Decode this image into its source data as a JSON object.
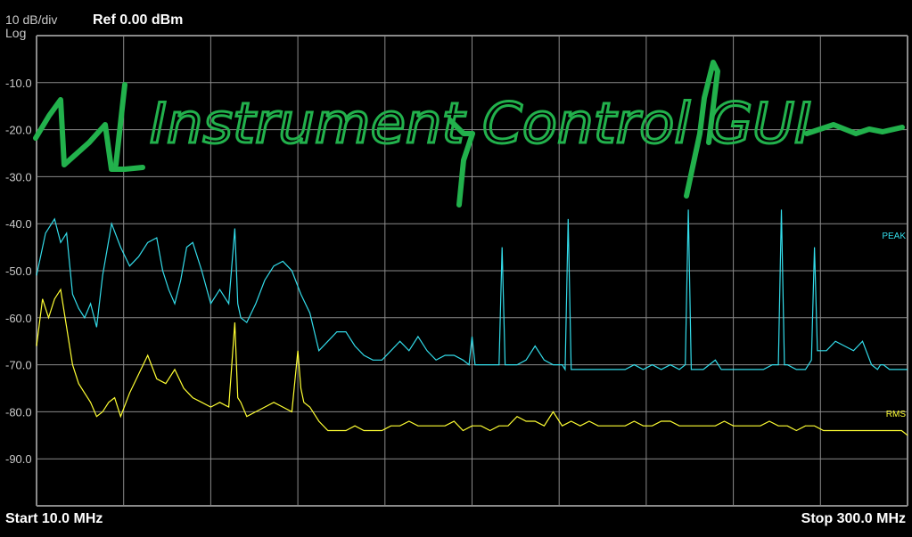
{
  "header": {
    "scale": "10 dB/div",
    "scale_type": "Log",
    "reference": "Ref 0.00 dBm"
  },
  "footer": {
    "start": "Start 10.0 MHz",
    "stop": "Stop 300.0 MHz"
  },
  "overlay_text": "Instrument Control GUI",
  "colors": {
    "background": "#000000",
    "grid": "#8a8a8a",
    "peak_trace": "#33dcea",
    "rms_trace": "#ffff33",
    "overlay": "#22b14c"
  },
  "chart_data": {
    "type": "line",
    "x_unit": "MHz",
    "y_unit": "dBm",
    "xlim": [
      10,
      300
    ],
    "ylim": [
      -100,
      0
    ],
    "y_ticks": [
      "-10.0",
      "-20.0",
      "-30.0",
      "-40.0",
      "-50.0",
      "-60.0",
      "-70.0",
      "-80.0",
      "-90.0"
    ],
    "grid": true,
    "series": [
      {
        "name": "PEAK",
        "color": "#33dcea",
        "x": [
          10,
          13,
          16,
          18,
          20,
          22,
          24,
          26,
          28,
          30,
          32,
          35,
          38,
          41,
          44,
          47,
          50,
          52,
          54,
          56,
          58,
          60,
          62,
          65,
          68,
          71,
          74,
          76,
          77,
          78,
          80,
          83,
          86,
          89,
          92,
          95,
          98,
          101,
          104,
          107,
          110,
          113,
          116,
          119,
          122,
          125,
          128,
          131,
          134,
          137,
          140,
          143,
          146,
          149,
          152,
          154,
          155,
          156,
          158,
          161,
          164,
          165,
          166,
          167,
          170,
          173,
          176,
          179,
          182,
          185,
          186,
          187,
          188,
          191,
          194,
          197,
          200,
          203,
          206,
          209,
          212,
          215,
          218,
          221,
          224,
          226,
          227,
          228,
          230,
          232,
          234,
          236,
          238,
          240,
          243,
          246,
          249,
          252,
          255,
          257,
          258,
          259,
          260,
          263,
          266,
          268,
          269,
          270,
          273,
          276,
          279,
          282,
          285,
          288,
          290,
          291,
          292,
          294,
          296,
          298,
          300
        ],
        "values": [
          -51,
          -42,
          -39,
          -44,
          -42,
          -55,
          -58,
          -60,
          -57,
          -62,
          -51,
          -40,
          -45,
          -49,
          -47,
          -44,
          -43,
          -50,
          -54,
          -57,
          -52,
          -45,
          -44,
          -50,
          -57,
          -54,
          -57,
          -41,
          -57,
          -60,
          -61,
          -57,
          -52,
          -49,
          -48,
          -50,
          -55,
          -59,
          -67,
          -65,
          -63,
          -63,
          -66,
          -68,
          -69,
          -69,
          -67,
          -65,
          -67,
          -64,
          -67,
          -69,
          -68,
          -68,
          -69,
          -70,
          -64,
          -70,
          -70,
          -70,
          -70,
          -45,
          -70,
          -70,
          -70,
          -69,
          -66,
          -69,
          -70,
          -70,
          -71,
          -39,
          -71,
          -71,
          -71,
          -71,
          -71,
          -71,
          -71,
          -70,
          -71,
          -70,
          -71,
          -70,
          -71,
          -70,
          -37,
          -71,
          -71,
          -71,
          -70,
          -69,
          -71,
          -71,
          -71,
          -71,
          -71,
          -71,
          -70,
          -70,
          -37,
          -70,
          -70,
          -71,
          -71,
          -69,
          -45,
          -67,
          -67,
          -65,
          -66,
          -67,
          -65,
          -70,
          -71,
          -70,
          -70,
          -71,
          -71,
          -71,
          -71
        ]
      },
      {
        "name": "RMS",
        "color": "#ffff33",
        "x": [
          10,
          12,
          14,
          16,
          18,
          20,
          22,
          24,
          26,
          28,
          30,
          32,
          34,
          36,
          38,
          41,
          44,
          47,
          50,
          53,
          56,
          59,
          62,
          65,
          68,
          71,
          74,
          76,
          77,
          78,
          80,
          83,
          86,
          89,
          92,
          95,
          97,
          98,
          99,
          101,
          104,
          107,
          110,
          113,
          116,
          119,
          122,
          125,
          128,
          131,
          134,
          137,
          140,
          143,
          146,
          149,
          152,
          155,
          158,
          161,
          164,
          167,
          170,
          173,
          176,
          179,
          182,
          185,
          188,
          191,
          194,
          197,
          200,
          203,
          206,
          209,
          212,
          215,
          218,
          221,
          224,
          227,
          230,
          233,
          236,
          239,
          242,
          245,
          248,
          251,
          254,
          257,
          260,
          263,
          266,
          269,
          272,
          275,
          278,
          281,
          284,
          287,
          290,
          293,
          296,
          298,
          300
        ],
        "values": [
          -66,
          -56,
          -60,
          -56,
          -54,
          -62,
          -70,
          -74,
          -76,
          -78,
          -81,
          -80,
          -78,
          -77,
          -81,
          -76,
          -72,
          -68,
          -73,
          -74,
          -71,
          -75,
          -77,
          -78,
          -79,
          -78,
          -79,
          -61,
          -77,
          -78,
          -81,
          -80,
          -79,
          -78,
          -79,
          -80,
          -67,
          -75,
          -78,
          -79,
          -82,
          -84,
          -84,
          -84,
          -83,
          -84,
          -84,
          -84,
          -83,
          -83,
          -82,
          -83,
          -83,
          -83,
          -83,
          -82,
          -84,
          -83,
          -83,
          -84,
          -83,
          -83,
          -81,
          -82,
          -82,
          -83,
          -80,
          -83,
          -82,
          -83,
          -82,
          -83,
          -83,
          -83,
          -83,
          -82,
          -83,
          -83,
          -82,
          -82,
          -83,
          -83,
          -83,
          -83,
          -83,
          -82,
          -83,
          -83,
          -83,
          -83,
          -82,
          -83,
          -83,
          -84,
          -83,
          -83,
          -84,
          -84,
          -84,
          -84,
          -84,
          -84,
          -84,
          -84,
          -84,
          -84,
          -85
        ]
      }
    ]
  }
}
